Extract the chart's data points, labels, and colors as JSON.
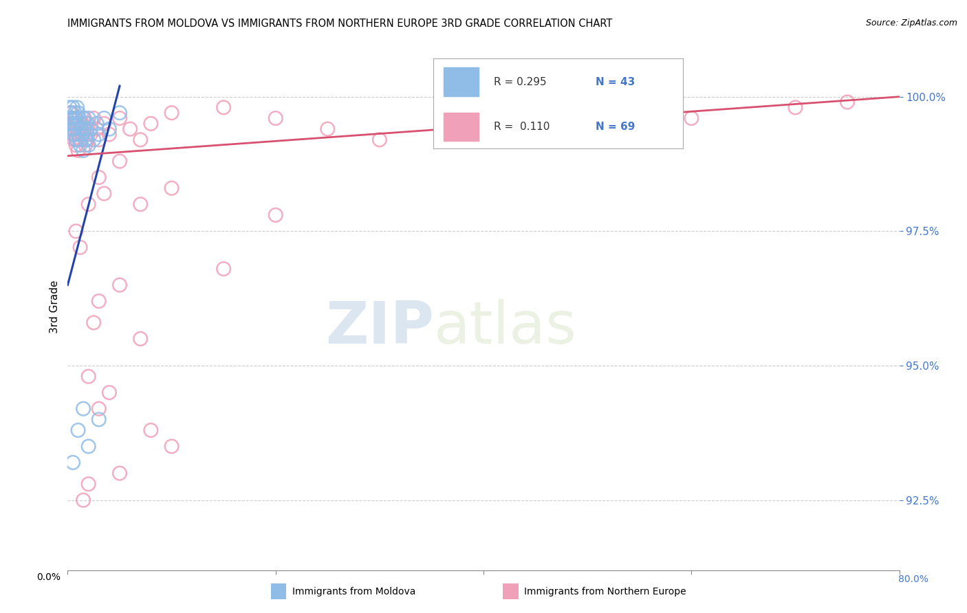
{
  "title": "IMMIGRANTS FROM MOLDOVA VS IMMIGRANTS FROM NORTHERN EUROPE 3RD GRADE CORRELATION CHART",
  "source": "Source: ZipAtlas.com",
  "ylabel": "3rd Grade",
  "xlim": [
    0.0,
    80.0
  ],
  "ylim": [
    91.2,
    101.0
  ],
  "yticks": [
    92.5,
    95.0,
    97.5,
    100.0
  ],
  "ytick_labels": [
    "92.5%",
    "95.0%",
    "97.5%",
    "100.0%"
  ],
  "legend_blue_r": "R = 0.295",
  "legend_blue_n": "N = 43",
  "legend_pink_r": "R =  0.110",
  "legend_pink_n": "N = 69",
  "blue_color": "#90bce8",
  "pink_color": "#f0a0b8",
  "blue_line_color": "#2244aa",
  "pink_line_color": "#d85070",
  "watermark_zip": "ZIP",
  "watermark_atlas": "atlas",
  "blue_scatter_x": [
    0.2,
    0.3,
    0.3,
    0.4,
    0.4,
    0.5,
    0.5,
    0.6,
    0.6,
    0.7,
    0.7,
    0.8,
    0.8,
    0.9,
    0.9,
    1.0,
    1.0,
    1.1,
    1.1,
    1.2,
    1.2,
    1.3,
    1.4,
    1.5,
    1.5,
    1.6,
    1.7,
    1.8,
    1.9,
    2.0,
    2.0,
    2.2,
    2.5,
    2.8,
    3.0,
    3.5,
    4.0,
    5.0,
    0.5,
    1.0,
    1.5,
    2.0,
    3.0
  ],
  "blue_scatter_y": [
    99.8,
    99.7,
    99.6,
    99.5,
    99.4,
    99.8,
    99.6,
    99.5,
    99.3,
    99.7,
    99.4,
    99.6,
    99.2,
    99.8,
    99.5,
    99.7,
    99.3,
    99.6,
    99.2,
    99.5,
    99.1,
    99.4,
    99.3,
    99.6,
    99.0,
    99.4,
    99.2,
    99.5,
    99.3,
    99.6,
    99.1,
    99.4,
    99.2,
    99.5,
    99.3,
    99.6,
    99.4,
    99.7,
    93.2,
    93.8,
    94.2,
    93.5,
    94.0
  ],
  "pink_scatter_x": [
    0.2,
    0.3,
    0.3,
    0.4,
    0.4,
    0.5,
    0.5,
    0.6,
    0.6,
    0.7,
    0.7,
    0.8,
    0.8,
    0.9,
    0.9,
    1.0,
    1.0,
    1.1,
    1.2,
    1.3,
    1.4,
    1.5,
    1.6,
    1.7,
    1.8,
    1.9,
    2.0,
    2.2,
    2.5,
    2.8,
    3.0,
    3.5,
    4.0,
    5.0,
    6.0,
    7.0,
    8.0,
    10.0,
    15.0,
    20.0,
    25.0,
    30.0,
    40.0,
    50.0,
    60.0,
    70.0,
    75.0,
    3.0,
    3.5,
    5.0,
    7.0,
    10.0,
    0.8,
    1.2,
    2.0,
    20.0,
    15.0,
    5.0,
    3.0,
    2.5,
    2.0,
    4.0,
    7.0,
    10.0,
    8.0,
    3.0,
    5.0,
    2.0,
    1.5
  ],
  "pink_scatter_y": [
    99.7,
    99.6,
    99.5,
    99.7,
    99.4,
    99.6,
    99.3,
    99.5,
    99.2,
    99.6,
    99.3,
    99.5,
    99.1,
    99.4,
    99.2,
    99.5,
    99.0,
    99.3,
    99.4,
    99.2,
    99.5,
    99.3,
    99.6,
    99.1,
    99.4,
    99.2,
    99.5,
    99.3,
    99.6,
    99.4,
    99.2,
    99.5,
    99.3,
    99.6,
    99.4,
    99.2,
    99.5,
    99.7,
    99.8,
    99.6,
    99.4,
    99.2,
    99.5,
    99.3,
    99.6,
    99.8,
    99.9,
    98.5,
    98.2,
    98.8,
    98.0,
    98.3,
    97.5,
    97.2,
    98.0,
    97.8,
    96.8,
    96.5,
    96.2,
    95.8,
    94.8,
    94.5,
    95.5,
    93.5,
    93.8,
    94.2,
    93.0,
    92.8,
    92.5
  ],
  "blue_trend_x": [
    0,
    5
  ],
  "blue_trend_y": [
    96.5,
    100.2
  ],
  "pink_trend_x": [
    0,
    80
  ],
  "pink_trend_y": [
    98.9,
    100.0
  ]
}
